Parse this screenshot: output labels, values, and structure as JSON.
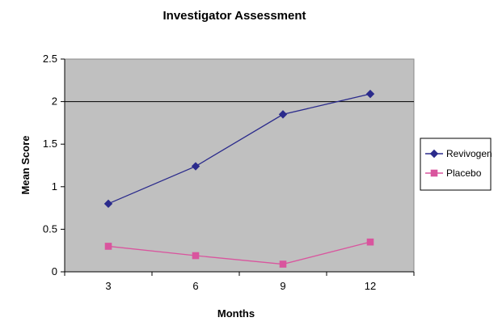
{
  "chart_data": {
    "type": "line",
    "title": "Investigator Assessment",
    "xlabel": "Months",
    "ylabel": "Mean Score",
    "categories": [
      "3",
      "6",
      "9",
      "12"
    ],
    "ylim": [
      0,
      2.5
    ],
    "yticks": [
      "0",
      "0.5",
      "1",
      "1.5",
      "2",
      "2.5"
    ],
    "grid": "horizontal line at 2",
    "legend_position": "right",
    "plot_background": "#c0c0c0",
    "series": [
      {
        "name": "Revivogen",
        "values": [
          0.8,
          1.24,
          1.85,
          2.09
        ],
        "color": "#2b2b8c",
        "marker": "diamond"
      },
      {
        "name": "Placebo",
        "values": [
          0.3,
          0.19,
          0.09,
          0.35
        ],
        "color": "#d9559e",
        "marker": "square"
      }
    ]
  }
}
